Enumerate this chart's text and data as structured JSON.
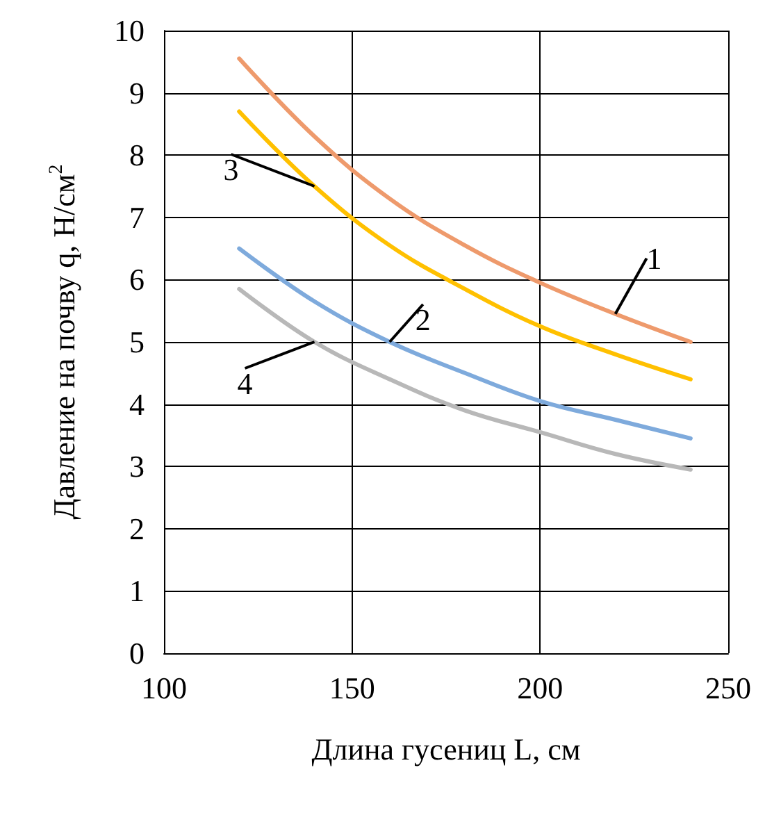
{
  "chart_data": {
    "type": "line",
    "xlabel": "Длина гусениц L, см",
    "ylabel": "Давление на почву q, Н/см$^{2}$",
    "x": [
      120,
      140,
      160,
      180,
      200,
      220,
      240
    ],
    "series": [
      {
        "name": "1",
        "color": "#ee9a6c",
        "values": [
          9.55,
          8.3,
          7.3,
          6.55,
          5.95,
          5.45,
          5.0
        ]
      },
      {
        "name": "2",
        "color": "#7eaadc",
        "values": [
          6.5,
          5.65,
          5.0,
          4.5,
          4.05,
          3.75,
          3.45
        ]
      },
      {
        "name": "3",
        "color": "#ffc000",
        "values": [
          8.7,
          7.5,
          6.55,
          5.85,
          5.25,
          4.8,
          4.4
        ]
      },
      {
        "name": "4",
        "color": "#b8b8b8",
        "values": [
          5.85,
          5.0,
          4.4,
          3.9,
          3.55,
          3.2,
          2.95
        ]
      }
    ],
    "xlim": [
      100,
      250
    ],
    "xticks": [
      100,
      150,
      200,
      250
    ],
    "ylim": [
      0,
      10
    ],
    "yticks": [
      0,
      1,
      2,
      3,
      4,
      5,
      6,
      7,
      8,
      9,
      10
    ],
    "grid": true,
    "legend": false,
    "marker": "none",
    "line_style": "solid"
  }
}
